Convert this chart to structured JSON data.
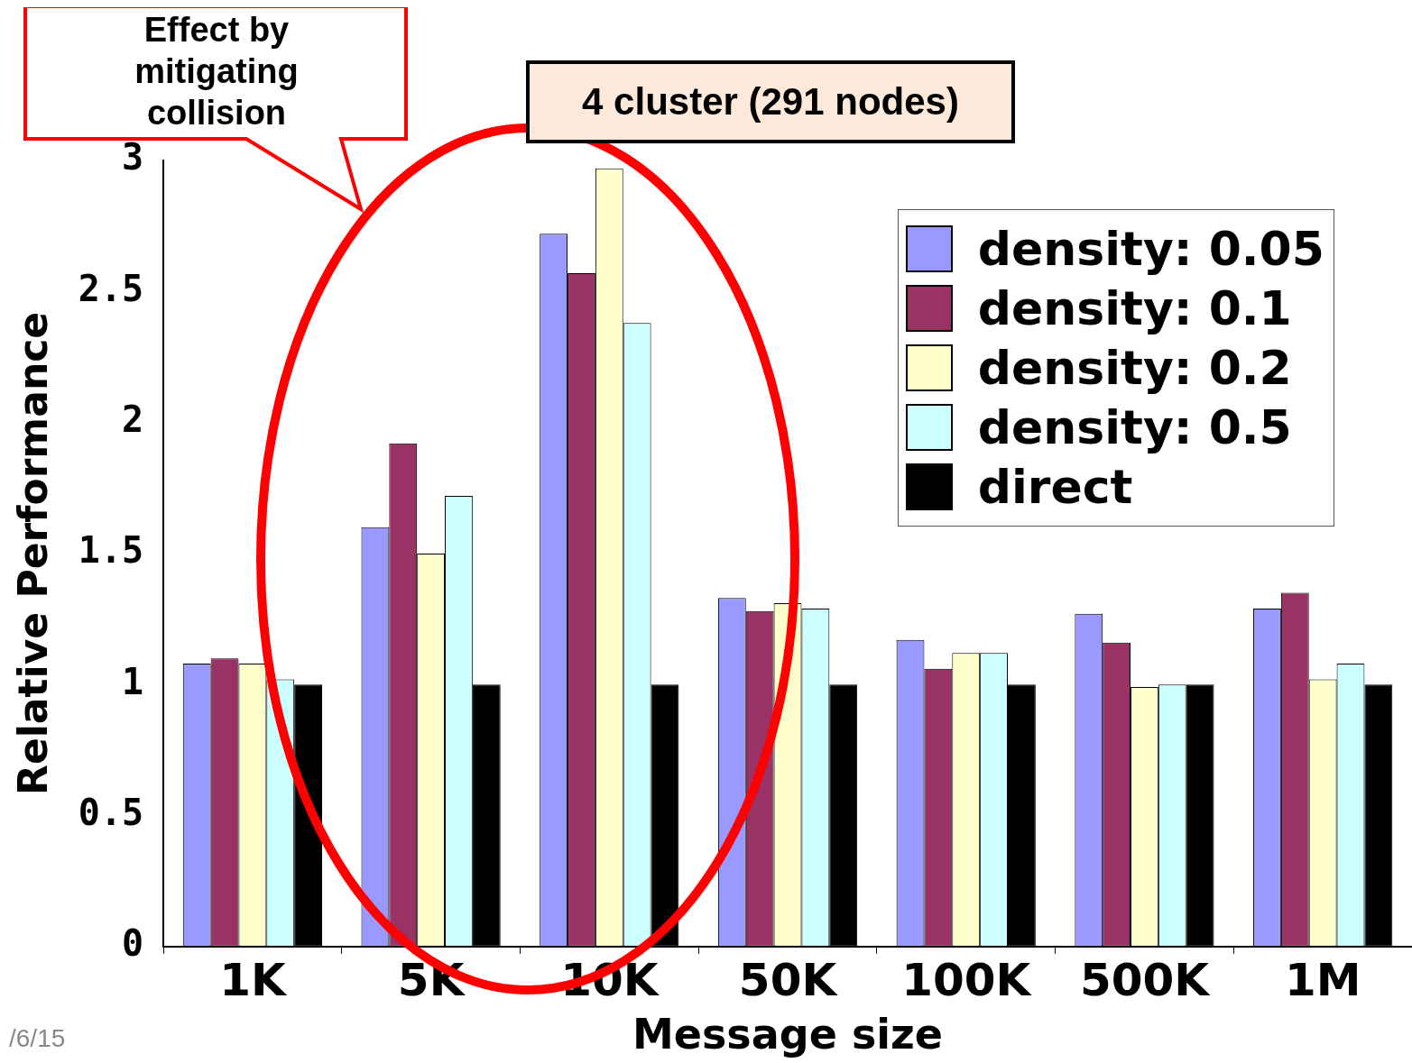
{
  "chart_data": {
    "type": "bar",
    "xlabel": "Message size",
    "ylabel": "Relative Performance",
    "categories": [
      "1K",
      "5K",
      "10K",
      "50K",
      "100K",
      "500K",
      "1M"
    ],
    "series": [
      {
        "name": "density: 0.05",
        "color": "#9999ff",
        "values": [
          1.08,
          1.6,
          2.72,
          1.33,
          1.17,
          1.27,
          1.29
        ]
      },
      {
        "name": "density: 0.1",
        "color": "#993366",
        "values": [
          1.1,
          1.92,
          2.57,
          1.28,
          1.06,
          1.16,
          1.35
        ]
      },
      {
        "name": "density: 0.2",
        "color": "#ffffcc",
        "values": [
          1.08,
          1.5,
          2.97,
          1.31,
          1.12,
          0.99,
          1.02
        ]
      },
      {
        "name": "density: 0.5",
        "color": "#ccffff",
        "values": [
          1.02,
          1.72,
          2.38,
          1.29,
          1.12,
          1.0,
          1.08
        ]
      },
      {
        "name": "direct",
        "color": "#000000",
        "values": [
          1,
          1,
          1,
          1,
          1,
          1,
          1
        ]
      }
    ],
    "ylim": [
      0,
      3
    ],
    "yticks": [
      0,
      0.5,
      1,
      1.5,
      2,
      2.5,
      3
    ],
    "legend": "top right",
    "annotations": [
      "Effect by mitigating collision",
      "4 cluster (291 nodes)",
      "/6/15"
    ]
  }
}
